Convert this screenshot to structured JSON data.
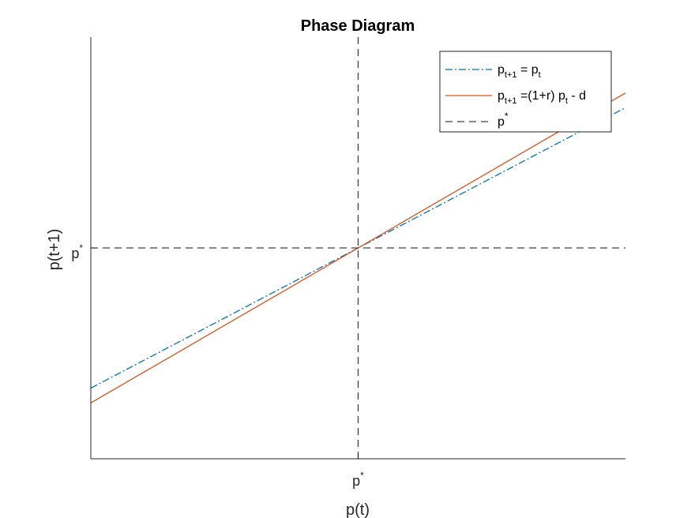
{
  "chart_data": {
    "type": "line",
    "title": "Phase Diagram",
    "xlabel": "p(t)",
    "ylabel": "p(t+1)",
    "xlim": [
      0,
      2
    ],
    "ylim": [
      0,
      2
    ],
    "xticks": [
      {
        "value": 1,
        "base": "p",
        "sup": "*"
      }
    ],
    "yticks": [
      {
        "value": 1,
        "base": "p",
        "sup": "*"
      }
    ],
    "series": [
      {
        "name": "p_{t+1} = p_t",
        "legend": {
          "p1": "p",
          "s1": "t+1",
          "mid": " = p",
          "s2": "t",
          "tail": ""
        },
        "color": "#0072BD",
        "style": "dashdot",
        "x": [
          0,
          2
        ],
        "y": [
          0.335,
          1.665
        ]
      },
      {
        "name": "p_{t+1} =(1+r) p_t - d",
        "legend": {
          "p1": "p",
          "s1": "t+1",
          "mid": " =(1+r) p",
          "s2": "t",
          "tail": " - d"
        },
        "color": "#D95319",
        "style": "solid",
        "x": [
          0,
          2
        ],
        "y": [
          0.265,
          1.735
        ]
      },
      {
        "name": "p^*",
        "legend": {
          "p1": "p",
          "s1": "",
          "mid": "",
          "s2": "",
          "tail": "",
          "sup": "*"
        },
        "color": "#404040",
        "style": "dashed",
        "hline": 1,
        "vline": 1
      }
    ],
    "legend_position": "top-right",
    "grid": false
  }
}
